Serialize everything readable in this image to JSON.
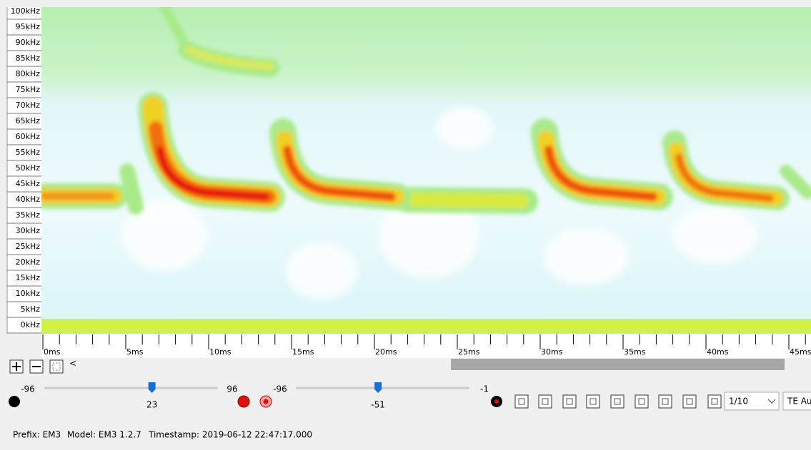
{
  "y_axis": {
    "labels": [
      "100kHz",
      "95kHz",
      "90kHz",
      "85kHz",
      "80kHz",
      "75kHz",
      "70kHz",
      "65kHz",
      "60kHz",
      "55kHz",
      "50kHz",
      "45kHz",
      "40kHz",
      "35kHz",
      "30kHz",
      "25kHz",
      "20kHz",
      "15kHz",
      "10kHz",
      "5kHz",
      "0kHz"
    ]
  },
  "x_axis": {
    "labels": [
      "0ms",
      "5ms",
      "10ms",
      "15ms",
      "20ms",
      "25ms",
      "30ms",
      "35ms",
      "40ms",
      "45ms"
    ]
  },
  "controls": {
    "scroll_left": "<",
    "slider1": {
      "min": -96,
      "value": 23,
      "max": 96
    },
    "slider2": {
      "min": -96,
      "value": -51,
      "max": -1
    },
    "rate": "1/10",
    "mode": "TE Au"
  },
  "status": {
    "prefix": "Prefix: EM3",
    "model": "Model: EM3 1.2.7",
    "timestamp": "Timestamp: 2019-06-12 22:47:17.000"
  }
}
